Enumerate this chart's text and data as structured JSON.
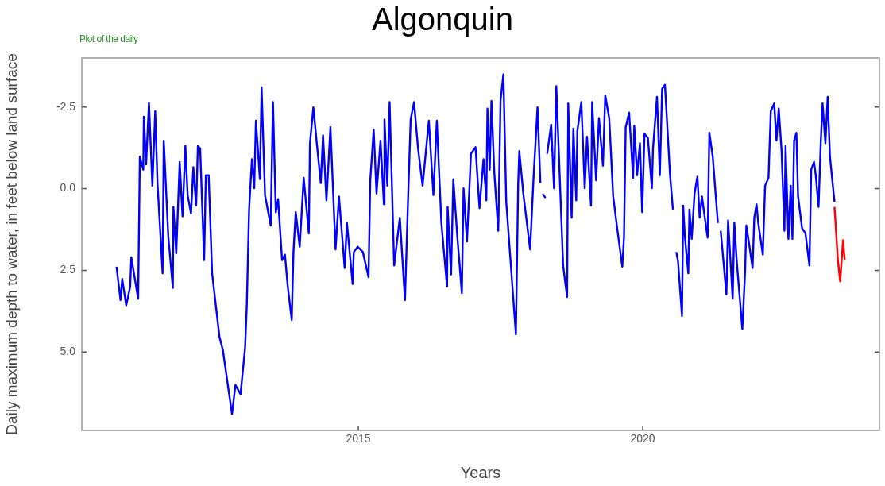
{
  "chart_data": {
    "type": "line",
    "title": "Algonquin",
    "xlabel": "Years",
    "ylabel": "Daily maximum depth to water, in feet below land surface",
    "annotations": [
      "Plot of the daily"
    ],
    "xlim": [
      2010.14,
      2024.16
    ],
    "xticks": [
      2015,
      2020
    ],
    "ylim": [
      7.4,
      -4.0
    ],
    "yticks": [
      -2.5,
      {
        "value": 0,
        "label": "0.0"
      },
      2.5,
      {
        "value": 5,
        "label": "5.0"
      }
    ],
    "series": [
      {
        "color": "#0000ff",
        "x": [
          2010.75,
          2010.82,
          2010.85,
          2010.92,
          2010.99,
          2011.01,
          2011.13,
          2011.16,
          2011.22,
          2011.23,
          2011.27,
          2011.32,
          2011.38,
          2011.43,
          2011.47,
          2011.56,
          2011.58,
          2011.66,
          2011.74,
          2011.75,
          2011.8,
          2011.86,
          2011.91,
          2011.96,
          2012.0,
          2012.06,
          2012.1,
          2012.15,
          2012.18,
          2012.22,
          2012.29,
          2012.32,
          2012.37,
          2012.43,
          2012.56,
          2012.62,
          2012.78,
          2012.84,
          2012.93,
          2013.01,
          2013.04,
          2013.08,
          2013.13,
          2013.17,
          2013.2,
          2013.27,
          2013.3,
          2013.36,
          2013.46,
          2013.5,
          2013.55,
          2013.59,
          2013.66,
          2013.71,
          2013.76,
          2013.83,
          2013.86,
          2013.9,
          2013.97,
          2014.04,
          2014.13,
          2014.15,
          2014.21,
          2014.27,
          2014.34,
          2014.38,
          2014.44,
          2014.51,
          2014.6,
          2014.66,
          2014.76,
          2014.8,
          2014.9,
          2014.92,
          2014.99,
          2015.08,
          2015.18,
          2015.21,
          2015.27,
          2015.32,
          2015.39,
          2015.45,
          2015.46,
          2015.51,
          2015.55,
          2015.63,
          2015.73,
          2015.82,
          2015.87,
          2015.92,
          2015.98,
          2016.05,
          2016.13,
          2016.24,
          2016.32,
          2016.38,
          2016.46,
          2016.56,
          2016.57,
          2016.63,
          2016.67,
          2016.74,
          2016.82,
          2016.85,
          2016.91,
          2016.98,
          2017.06,
          2017.13,
          2017.2,
          2017.25,
          2017.27,
          2017.31,
          2017.34,
          2017.39,
          2017.46,
          2017.5,
          2017.55,
          2017.6,
          2017.77,
          2017.81,
          2017.83,
          2017.9,
          2018.02,
          2018.08,
          2018.15,
          2018.2,
          2018.22,
          2018.24,
          2018.29,
          2018.31,
          2018.32,
          2018.39,
          2018.44,
          2018.48,
          2018.6,
          2018.67,
          2018.69,
          2018.75,
          2018.78,
          2018.83,
          2018.85,
          2018.92,
          2018.98,
          2019.02,
          2019.09,
          2019.11,
          2019.18,
          2019.23,
          2019.3,
          2019.34,
          2019.41,
          2019.48,
          2019.55,
          2019.64,
          2019.67,
          2019.7,
          2019.76,
          2019.83,
          2019.85,
          2019.9,
          2019.95,
          2019.99,
          2020.03,
          2020.09,
          2020.16,
          2020.18,
          2020.25,
          2020.3,
          2020.34,
          2020.39,
          2020.48,
          2020.53,
          2020.56,
          2020.59,
          2020.62,
          2020.69,
          2020.71,
          2020.74,
          2020.8,
          2020.82,
          2020.86,
          2020.91,
          2020.96,
          2021.0,
          2021.04,
          2021.09,
          2021.14,
          2021.17,
          2021.23,
          2021.28,
          2021.32,
          2021.35,
          2021.37,
          2021.47,
          2021.5,
          2021.58,
          2021.61,
          2021.65,
          2021.75,
          2021.8,
          2021.82,
          2021.87,
          2021.93,
          2021.96,
          2022.0,
          2022.03,
          2022.11,
          2022.15,
          2022.21,
          2022.25,
          2022.31,
          2022.35,
          2022.39,
          2022.44,
          2022.49,
          2022.51,
          2022.56,
          2022.6,
          2022.63,
          2022.66,
          2022.7,
          2022.73,
          2022.8,
          2022.86,
          2022.93,
          2022.96,
          2023.01,
          2023.04,
          2023.09,
          2023.13,
          2023.16,
          2023.21,
          2023.25,
          2023.29,
          2023.37
        ],
        "values": [
          2.39,
          3.41,
          2.76,
          3.57,
          3.0,
          2.1,
          3.37,
          -0.98,
          -0.58,
          -2.2,
          -0.74,
          -2.63,
          -0.09,
          -2.37,
          -0.17,
          2.59,
          -1.47,
          1.46,
          3.04,
          0.56,
          1.98,
          -0.82,
          0.85,
          -1.31,
          0.2,
          0.76,
          -0.66,
          0.52,
          -1.31,
          -1.23,
          2.19,
          -0.41,
          -0.41,
          2.59,
          4.54,
          4.95,
          6.9,
          6.01,
          6.29,
          4.87,
          3.57,
          0.64,
          -0.9,
          -0.01,
          -2.08,
          -0.29,
          -3.1,
          0.2,
          1.13,
          -2.65,
          0.72,
          0.32,
          2.19,
          2.02,
          3.0,
          4.02,
          1.94,
          0.72,
          1.78,
          -0.33,
          1.37,
          -1.39,
          -2.49,
          -1.39,
          -0.17,
          -1.63,
          0.36,
          -1.88,
          1.86,
          0.24,
          2.43,
          1.05,
          2.92,
          1.94,
          1.78,
          1.94,
          2.71,
          -0.25,
          -1.8,
          0.15,
          -1.47,
          0.48,
          -2.12,
          -0.09,
          -2.65,
          2.35,
          0.89,
          3.41,
          0.56,
          -2.12,
          -2.65,
          -1.23,
          -0.09,
          -2.08,
          0.2,
          -2.08,
          1.05,
          3.0,
          0.56,
          2.63,
          -0.29,
          1.46,
          3.2,
          -0.01,
          1.62,
          -1.07,
          -1.27,
          0.6,
          -0.9,
          0.36,
          -2.45,
          -0.58,
          -2.69,
          -0.5,
          1.29,
          -2.69,
          -3.5,
          0.4,
          4.46,
          -0.17,
          -1.15,
          0.15,
          1.86,
          -0.33,
          -2.49,
          -0.17,
          null,
          0.16,
          0.28,
          null,
          -1.07,
          -1.96,
          -0.01,
          -3.14,
          2.35,
          3.32,
          -2.61,
          0.89,
          -1.84,
          0.36,
          -1.76,
          -2.65,
          -0.01,
          -1.59,
          0.52,
          -2.65,
          -0.25,
          -2.16,
          -0.7,
          -2.85,
          -2.16,
          0.24,
          1.21,
          2.39,
          1.5,
          -1.88,
          -2.33,
          -0.33,
          -1.92,
          -0.41,
          -1.39,
          0.72,
          -1.68,
          -1.55,
          -0.01,
          -1.23,
          -2.81,
          -0.41,
          -3.06,
          -3.18,
          -0.41,
          0.64,
          null,
          1.94,
          2.23,
          3.9,
          0.52,
          1.46,
          2.59,
          0.64,
          1.54,
          0.15,
          -0.37,
          0.89,
          0.24,
          0.89,
          1.5,
          -1.71,
          -0.98,
          0.15,
          1.05,
          null,
          1.29,
          3.24,
          0.97,
          3.37,
          1.05,
          2.19,
          4.3,
          2.47,
          1.13,
          1.7,
          2.43,
          0.89,
          0.48,
          1.05,
          2.02,
          -0.09,
          -0.33,
          -2.37,
          -2.61,
          -1.47,
          -2.45,
          -1.15,
          1.29,
          -1.31,
          1.54,
          -0.09,
          1.54,
          -1.47,
          -1.71,
          0.24,
          1.21,
          1.37,
          2.35,
          -0.58,
          -0.82,
          -0.41,
          0.56,
          -1.47,
          -2.61,
          -1.39,
          -2.81,
          -0.98,
          0.4
        ]
      },
      {
        "color": "#ff0000",
        "x": [
          2023.37,
          2023.43,
          2023.47,
          2023.52,
          2023.55
        ],
        "values": [
          0.56,
          2.19,
          2.84,
          1.58,
          2.19
        ]
      }
    ]
  }
}
